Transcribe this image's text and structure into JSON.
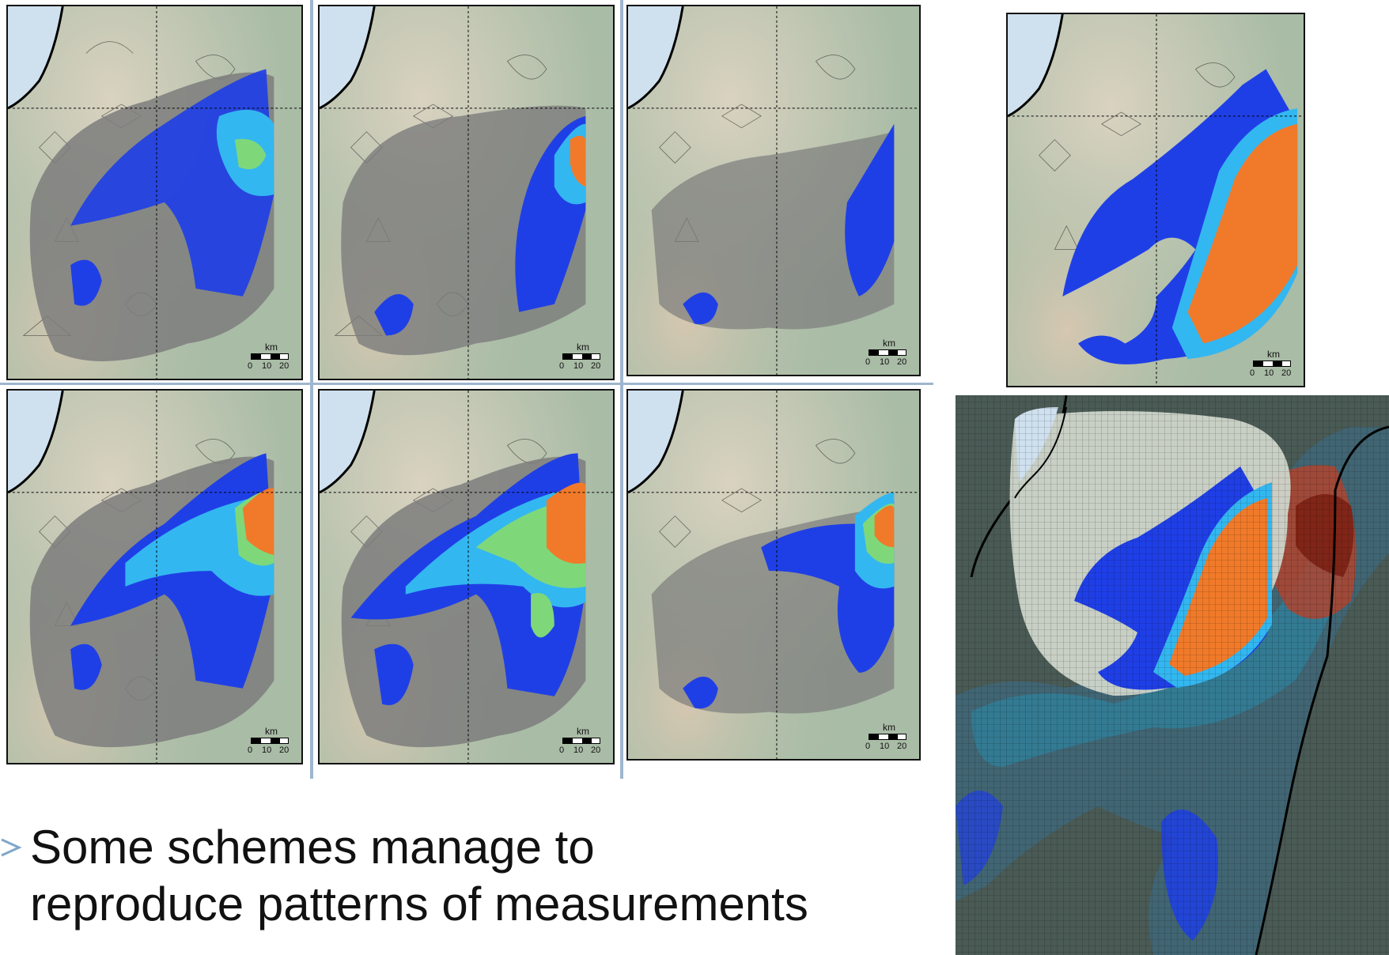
{
  "panels": [
    {
      "id": "p1",
      "scale": {
        "unit": "km",
        "ticks": [
          "0",
          "10",
          "20"
        ]
      }
    },
    {
      "id": "p2",
      "scale": {
        "unit": "km",
        "ticks": [
          "0",
          "10",
          "20"
        ]
      }
    },
    {
      "id": "p3",
      "scale": {
        "unit": "km",
        "ticks": [
          "0",
          "10",
          "20"
        ]
      }
    },
    {
      "id": "p4",
      "scale": {
        "unit": "km",
        "ticks": [
          "0",
          "10",
          "20"
        ]
      }
    },
    {
      "id": "p5",
      "scale": {
        "unit": "km",
        "ticks": [
          "0",
          "10",
          "20"
        ]
      }
    },
    {
      "id": "p6",
      "scale": {
        "unit": "km",
        "ticks": [
          "0",
          "10",
          "20"
        ]
      }
    },
    {
      "id": "measurement",
      "scale": {
        "unit": "km",
        "ticks": [
          "0",
          "10",
          "20"
        ]
      }
    }
  ],
  "caption": {
    "line1": "Some schemes manage to",
    "line2": "reproduce patterns of measurements"
  },
  "colors": {
    "water": "#cfe0ee",
    "land": "#b7c7b2",
    "relief_light": "#d8d2c1",
    "gray_plume": "#7c7c7c",
    "blue": "#1f3fe6",
    "cyan": "#33b7f0",
    "green": "#7ed87a",
    "orange": "#f07a2a",
    "red": "#c9301a",
    "grid_bg": "#4a5a55"
  }
}
